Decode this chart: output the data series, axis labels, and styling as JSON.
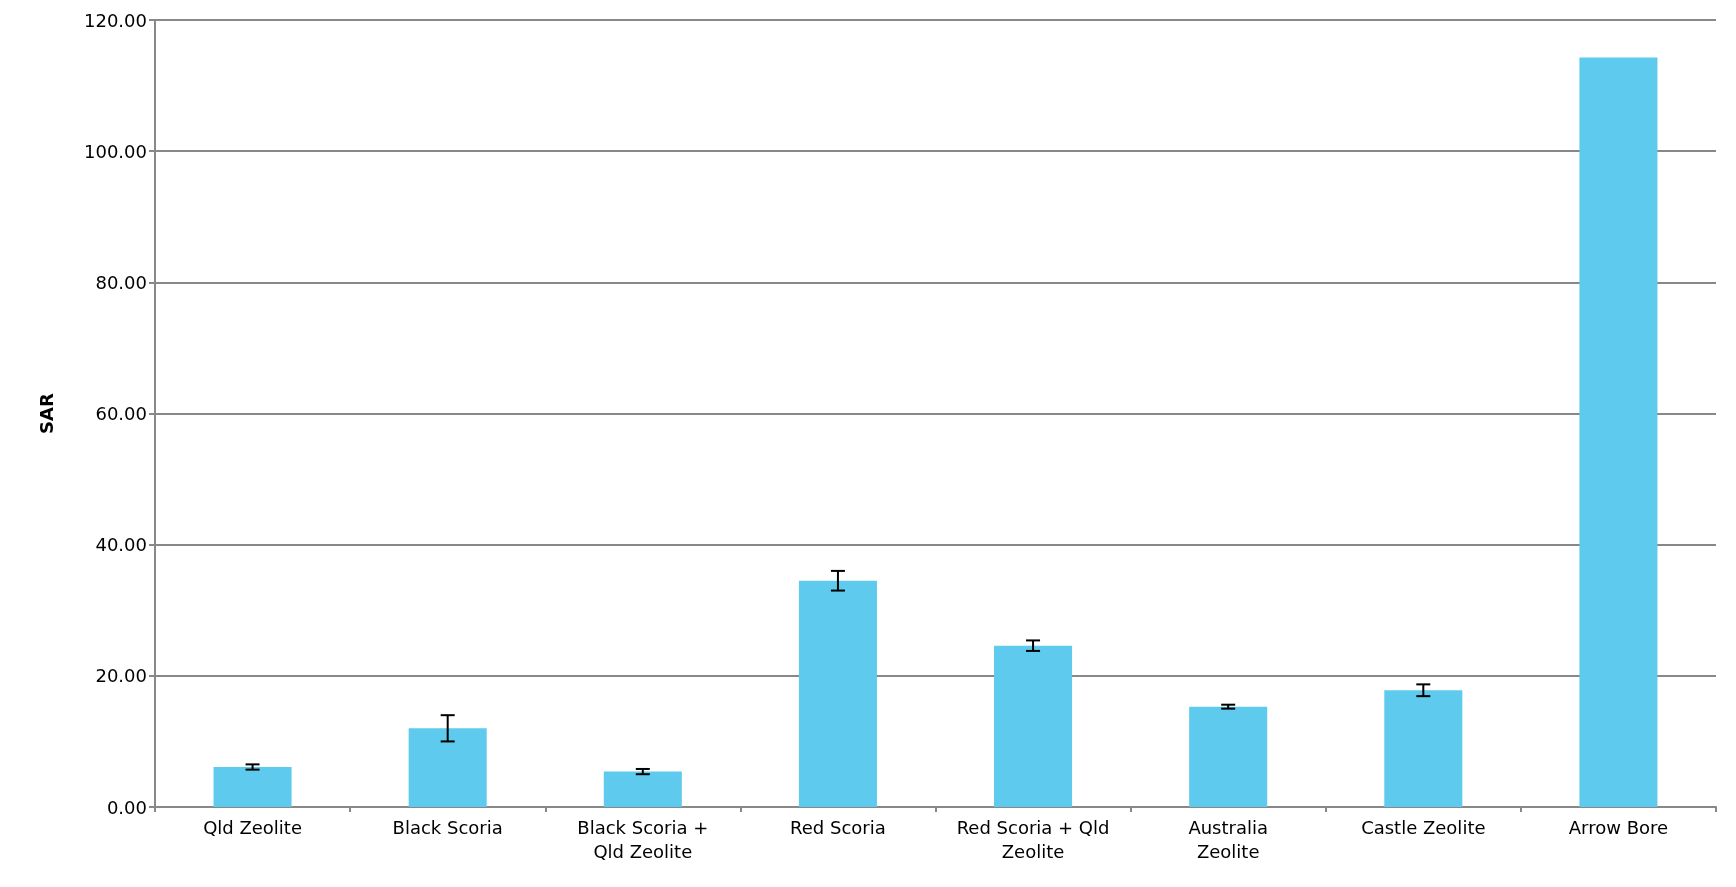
{
  "chart_data": {
    "type": "bar",
    "ylabel": "SAR",
    "categories": [
      "Qld Zeolite",
      "Black Scoria",
      "Black Scoria + Qld Zeolite",
      "Red Scoria",
      "Red Scoria + Qld Zeolite",
      "Australia Zeolite",
      "Castle Zeolite",
      "Arrow Bore"
    ],
    "values": [
      6.1,
      12.0,
      5.4,
      34.5,
      24.6,
      15.3,
      17.8,
      114.3
    ],
    "errors": [
      0.4,
      2.0,
      0.4,
      1.5,
      0.8,
      0.3,
      0.9,
      null
    ],
    "color": "#5ecbee",
    "ylim": [
      0,
      120
    ],
    "yticks": [
      {
        "value": 0,
        "label": "0.00"
      },
      {
        "value": 20,
        "label": "20.00"
      },
      {
        "value": 40,
        "label": "40.00"
      },
      {
        "value": 60,
        "label": "60.00"
      },
      {
        "value": 80,
        "label": "80.00"
      },
      {
        "value": 100,
        "label": "100.00"
      },
      {
        "value": 120,
        "label": "120.00"
      }
    ],
    "grid": "y"
  }
}
